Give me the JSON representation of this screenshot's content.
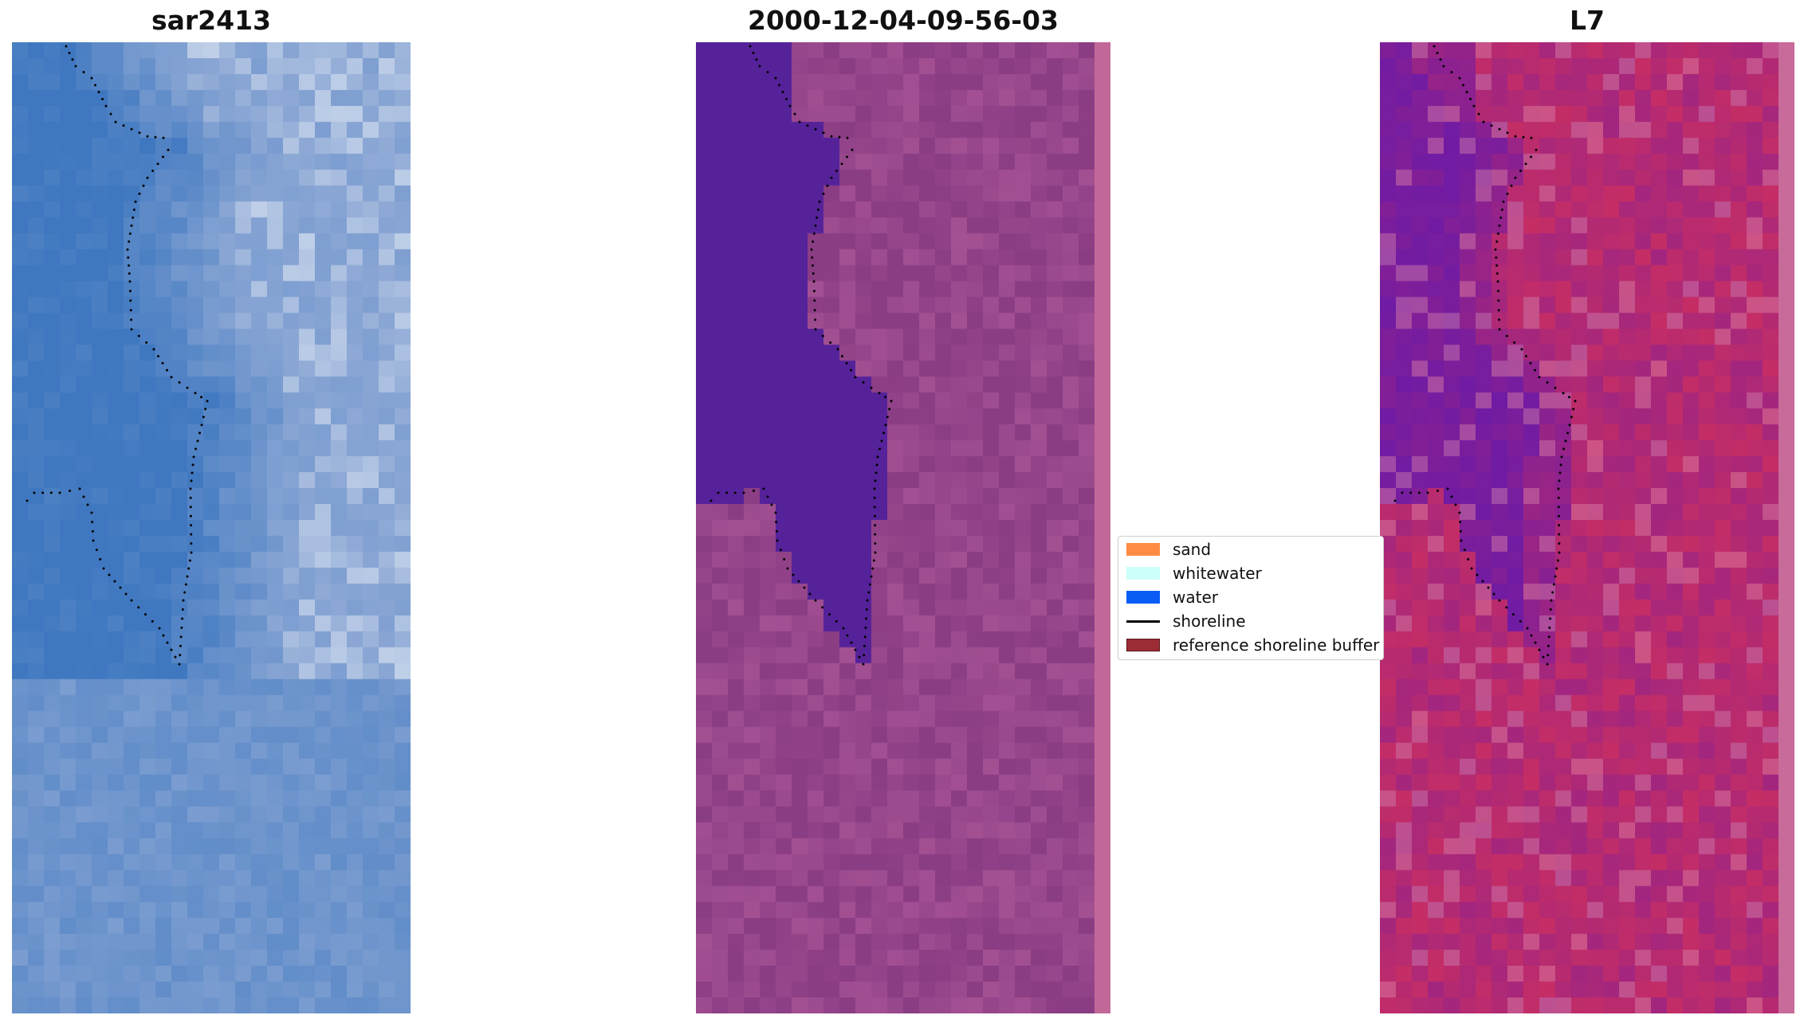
{
  "panels": [
    {
      "title": "sar2413"
    },
    {
      "title": "2000-12-04-09-56-03"
    },
    {
      "title": "L7"
    }
  ],
  "legend": {
    "items": [
      {
        "label": "sand",
        "kind": "patch",
        "color": "#ff8c42"
      },
      {
        "label": "whitewater",
        "kind": "patch",
        "color": "#ccfff9"
      },
      {
        "label": "water",
        "kind": "patch",
        "color": "#0a5cf5"
      },
      {
        "label": "shoreline",
        "kind": "line",
        "color": "#000000"
      },
      {
        "label": "reference shoreline buffer",
        "kind": "patch",
        "color": "#9b2c36"
      }
    ]
  },
  "colors": {
    "rgb_water": "#3f78c0",
    "rgb_land": "#8aa6d4",
    "class_water": "#55229a",
    "class_land": "#8b3d84",
    "class_strip": "#c26898",
    "l7_water": "#6a1aa8",
    "l7_land": "#cc2f60",
    "l7_strip": "#c86b9a"
  }
}
